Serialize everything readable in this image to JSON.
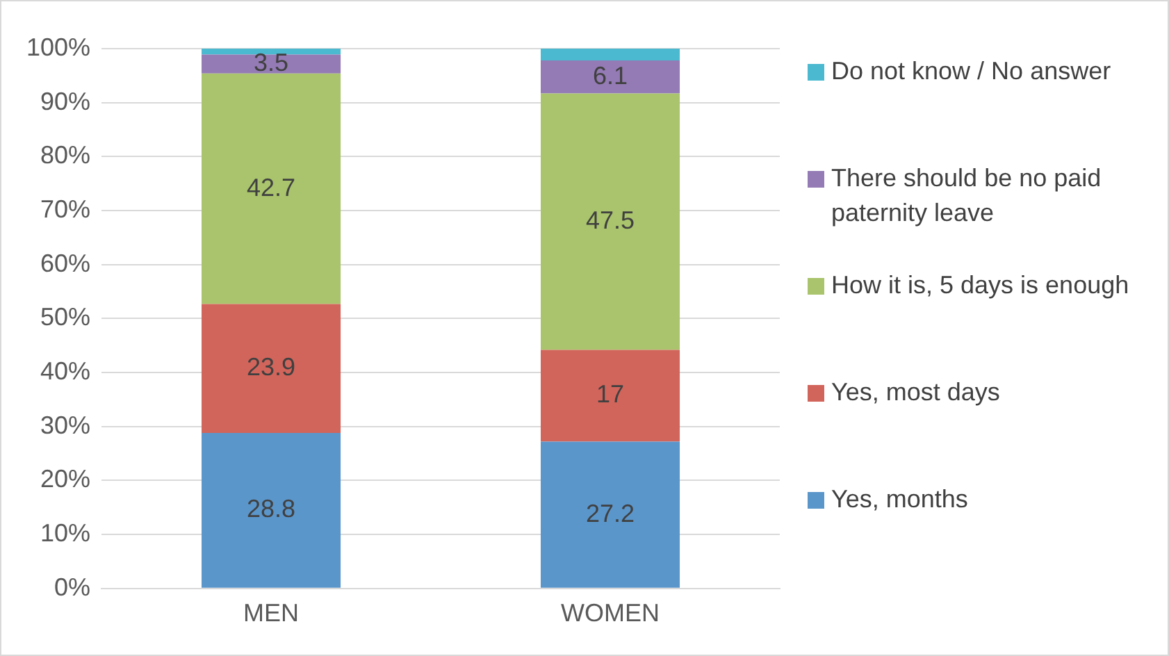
{
  "chart_data": {
    "type": "bar",
    "stacked": true,
    "categories": [
      "MEN",
      "WOMEN"
    ],
    "series": [
      {
        "name": "Yes, months",
        "color": "#5b96cb",
        "values": [
          28.8,
          27.2
        ],
        "value_labels": [
          "28.8",
          "27.2"
        ]
      },
      {
        "name": "Yes, most days",
        "color": "#d2655b",
        "values": [
          23.9,
          17
        ],
        "value_labels": [
          "23.9",
          "17"
        ]
      },
      {
        "name": "How it is, 5 days is enough",
        "color": "#a9c46c",
        "values": [
          42.7,
          47.5
        ],
        "value_labels": [
          "42.7",
          "47.5"
        ]
      },
      {
        "name": "There should be no paid paternity leave",
        "color": "#947bb5",
        "values": [
          3.5,
          6.1
        ],
        "value_labels": [
          "3.5",
          "6.1"
        ]
      },
      {
        "name": "Do not know / No answer",
        "color": "#4bb9d0",
        "values": [
          1.1,
          2.2
        ],
        "value_labels": [
          null,
          null
        ]
      }
    ],
    "ylim": [
      0,
      100
    ],
    "yticks": [
      {
        "value": 0,
        "label": "0%"
      },
      {
        "value": 10,
        "label": "10%"
      },
      {
        "value": 20,
        "label": "20%"
      },
      {
        "value": 30,
        "label": "30%"
      },
      {
        "value": 40,
        "label": "40%"
      },
      {
        "value": 50,
        "label": "50%"
      },
      {
        "value": 60,
        "label": "60%"
      },
      {
        "value": 70,
        "label": "70%"
      },
      {
        "value": 80,
        "label": "80%"
      },
      {
        "value": 90,
        "label": "90%"
      },
      {
        "value": 100,
        "label": "100%"
      }
    ],
    "grid": "y",
    "legend": "right"
  }
}
